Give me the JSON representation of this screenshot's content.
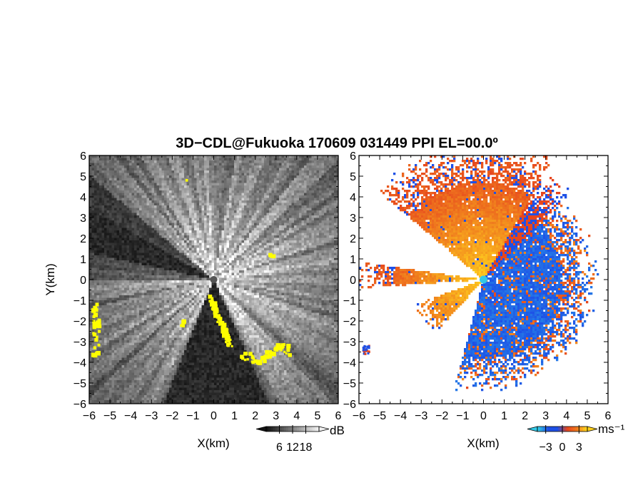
{
  "figure": {
    "title": "3D−CDL@Fukuoka 170609 031449 PPI EL=00.0º"
  },
  "chart_data": [
    {
      "type": "heatmap",
      "panel": "left",
      "quantity": "reflectivity",
      "xlabel": "X(km)",
      "ylabel": "Y(km)",
      "xlim": [
        -6,
        6
      ],
      "ylim": [
        -6,
        6
      ],
      "x_ticks": [
        "−6",
        "−5",
        "−4",
        "−3",
        "−2",
        "−1",
        "0",
        "1",
        "2",
        "3",
        "4",
        "5",
        "6"
      ],
      "y_ticks": [
        "−6",
        "−5",
        "−4",
        "−3",
        "−2",
        "−1",
        "0",
        "1",
        "2",
        "3",
        "4",
        "5",
        "6"
      ],
      "colorbar": {
        "unit": "dB",
        "colormap": "grayscale (black to white) with yellow overlay",
        "tick_values": [
          6,
          12,
          18
        ],
        "tick_labels": [
          "6",
          "12",
          "18"
        ],
        "range": [
          0,
          24
        ]
      }
    },
    {
      "type": "heatmap",
      "panel": "right",
      "quantity": "radial velocity",
      "xlabel": "X(km)",
      "ylabel": "",
      "xlim": [
        -6,
        6
      ],
      "ylim": [
        -6,
        6
      ],
      "x_ticks": [
        "−6",
        "−5",
        "−4",
        "−3",
        "−2",
        "−1",
        "0",
        "1",
        "2",
        "3",
        "4",
        "5",
        "6"
      ],
      "y_ticks": [
        "−6",
        "−5",
        "−4",
        "−3",
        "−2",
        "−1",
        "0",
        "1",
        "2",
        "3",
        "4",
        "5",
        "6"
      ],
      "colorbar": {
        "unit": "ms⁻¹",
        "colormap": "cyan-blue-red-orange-yellow diverging",
        "tick_values": [
          -3,
          0,
          3
        ],
        "tick_labels": [
          "−3",
          "0",
          "3"
        ],
        "range": [
          -4.5,
          4.5
        ]
      },
      "colors": {
        "negative": "#1e50e6",
        "positive": "#e6461e",
        "high": "#ffd21e",
        "center": "#32c8e6"
      }
    }
  ]
}
